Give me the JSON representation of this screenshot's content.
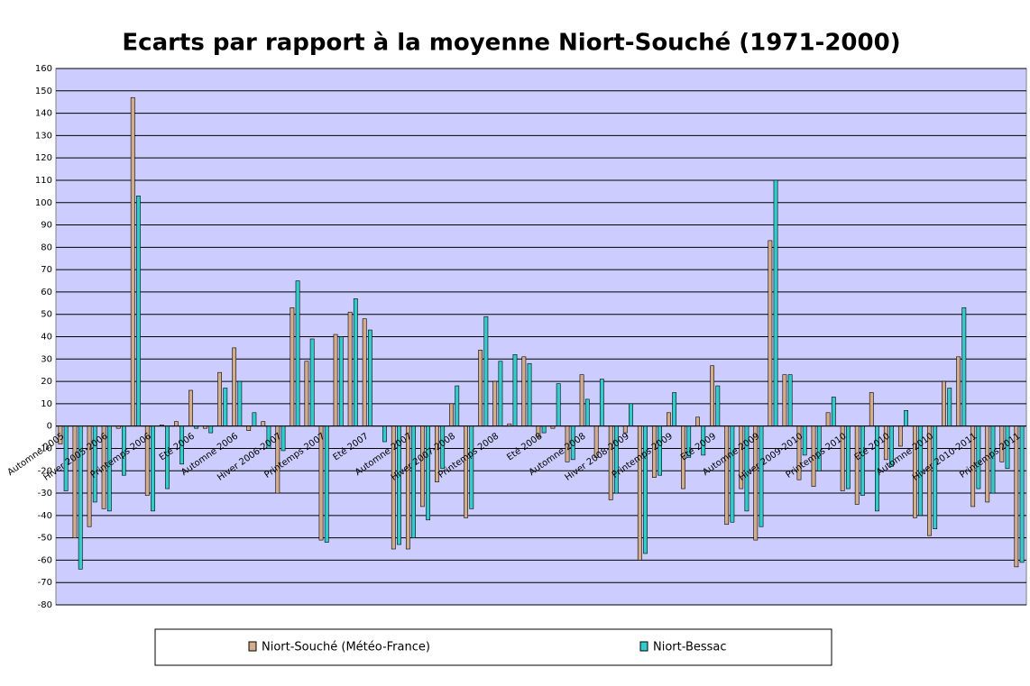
{
  "chart_data": {
    "type": "bar",
    "title": "Ecarts par rapport à la moyenne Niort-Souché (1971-2000)",
    "categories": [
      "Automne 2005",
      null,
      null,
      "Hiver 2005-2006",
      null,
      null,
      "Printemps 2006",
      null,
      null,
      "Eté 2006",
      null,
      null,
      "Automne 2006",
      null,
      null,
      "Hiver 2006-2007",
      null,
      null,
      "Printemps 2007",
      null,
      null,
      "Eté 2007",
      null,
      null,
      "Automne 2007",
      null,
      null,
      "Hiver 2007-2008",
      null,
      null,
      "Printemps 2008",
      null,
      null,
      "Eté 2008",
      null,
      null,
      "Automne 2008",
      null,
      null,
      "Hiver 2008-2009",
      null,
      null,
      "Printemps 2009",
      null,
      null,
      "Eté 2009",
      null,
      null,
      "Automne 2009",
      null,
      null,
      "Hiver 2009-2010",
      null,
      null,
      "Printemps 2010",
      null,
      null,
      "Eté 2010",
      null,
      null,
      "Automne 2010",
      null,
      null,
      "Hiver 2010-2011",
      null,
      null,
      "Printemps 2011"
    ],
    "series": [
      {
        "name": "Niort-Souché (Météo-France)",
        "color": "#d2ad8c",
        "values": [
          -8,
          -50,
          -45,
          -37,
          -1,
          147,
          -31,
          0.5,
          2,
          16,
          -1,
          24,
          35,
          -2,
          2,
          -30,
          53,
          29,
          -51,
          41,
          51,
          48,
          0,
          -55,
          -55,
          -36,
          -25,
          10,
          -41,
          34,
          20,
          1,
          31,
          -5,
          -1,
          -16,
          23,
          -14,
          -33,
          -3,
          -60,
          -23,
          6,
          -28,
          4,
          27,
          -44,
          -28,
          -51,
          83,
          23,
          -24,
          -27,
          6,
          -29,
          -35,
          15,
          -15,
          -9,
          -41,
          -49,
          20,
          31,
          -36,
          -34,
          -16,
          -63
        ]
      },
      {
        "name": "Niort-Bessac",
        "color": "#33cccc",
        "values": [
          -29,
          -64,
          -34,
          -38,
          -22,
          103,
          -38,
          -28,
          -17,
          -1,
          -3,
          17,
          20,
          6,
          -10,
          -11,
          65,
          39,
          -52,
          40,
          57,
          43,
          -7,
          -53,
          -50,
          -42,
          -19,
          18,
          -37,
          49,
          29,
          32,
          28,
          -3,
          19,
          -15,
          12,
          21,
          -30,
          10,
          -57,
          -22,
          15,
          -14,
          -13,
          18,
          -43,
          -38,
          -45,
          110,
          23,
          -13,
          -20,
          13,
          -28,
          -31,
          -38,
          -18,
          7,
          -40,
          -46,
          17,
          53,
          -28,
          -30,
          -19,
          -61
        ]
      }
    ],
    "ylim": [
      -80,
      160
    ],
    "yticks": [
      -80,
      -70,
      -60,
      -50,
      -40,
      -30,
      -20,
      -10,
      0,
      10,
      20,
      30,
      40,
      50,
      60,
      70,
      80,
      90,
      100,
      110,
      120,
      130,
      140,
      150,
      160
    ],
    "grid": true
  }
}
